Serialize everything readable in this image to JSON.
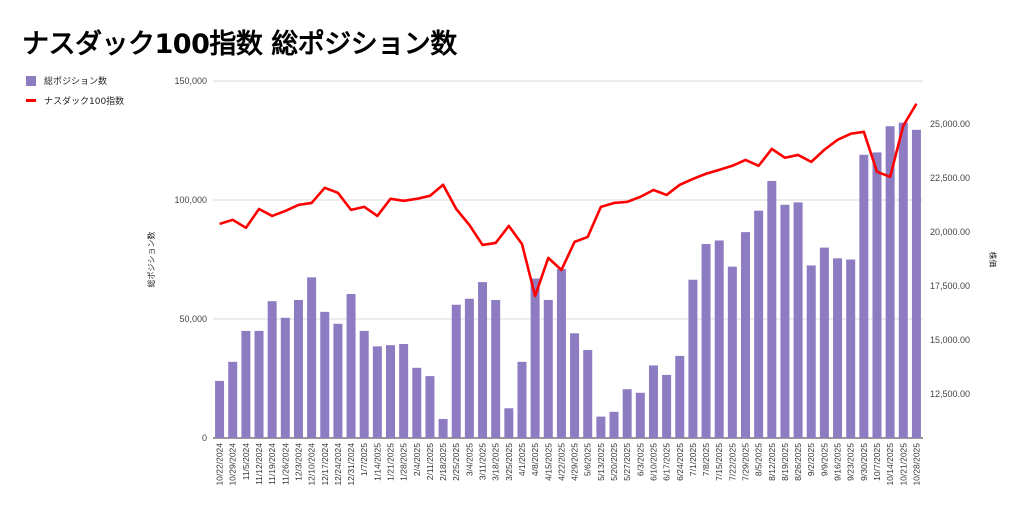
{
  "chart_data": {
    "type": "bar+line",
    "title": "ナスダック100指数 総ポジション数",
    "categories": [
      "10/22/2024",
      "10/29/2024",
      "11/5/2024",
      "11/12/2024",
      "11/19/2024",
      "11/26/2024",
      "12/3/2024",
      "12/10/2024",
      "12/17/2024",
      "12/24/2024",
      "12/31/2024",
      "1/7/2025",
      "1/14/2025",
      "1/21/2025",
      "1/28/2025",
      "2/4/2025",
      "2/11/2025",
      "2/18/2025",
      "2/25/2025",
      "3/4/2025",
      "3/11/2025",
      "3/18/2025",
      "3/25/2025",
      "4/1/2025",
      "4/8/2025",
      "4/15/2025",
      "4/22/2025",
      "4/29/2025",
      "5/6/2025",
      "5/13/2025",
      "5/20/2025",
      "5/27/2025",
      "6/3/2025",
      "6/10/2025",
      "6/17/2025",
      "6/24/2025",
      "7/1/2025",
      "7/8/2025",
      "7/15/2025",
      "7/22/2025",
      "7/29/2025",
      "8/5/2025",
      "8/12/2025",
      "8/19/2025",
      "8/26/2025",
      "9/2/2025",
      "9/9/2025",
      "9/16/2025",
      "9/23/2025",
      "9/30/2025",
      "10/7/2025",
      "10/14/2025",
      "10/21/2025",
      "10/28/2025"
    ],
    "series": [
      {
        "name": "総ポジション数",
        "type": "bar",
        "axis": "left",
        "color": "#8e7cc3",
        "values": [
          24000,
          32000,
          45000,
          45000,
          57500,
          50500,
          58000,
          67500,
          53000,
          48000,
          60500,
          45000,
          38500,
          39000,
          39500,
          29500,
          26000,
          8000,
          56000,
          58500,
          65500,
          58000,
          12500,
          32000,
          67000,
          58000,
          71000,
          44000,
          37000,
          9000,
          11000,
          20500,
          19000,
          30500,
          26500,
          34500,
          66500,
          81500,
          83000,
          72000,
          86500,
          95500,
          108000,
          98000,
          99000,
          72500,
          80000,
          75500,
          75000,
          119000,
          120000,
          131000,
          132500,
          129500
        ]
      },
      {
        "name": "ナスダック100指数",
        "type": "line",
        "axis": "right",
        "color": "#ff0000",
        "values": [
          20370,
          20560,
          20190,
          21060,
          20740,
          20970,
          21250,
          21340,
          22040,
          21810,
          21020,
          21160,
          20740,
          21530,
          21440,
          21530,
          21670,
          22180,
          21060,
          20320,
          19400,
          19490,
          20280,
          19440,
          17040,
          18800,
          18240,
          19540,
          19770,
          21160,
          21340,
          21390,
          21620,
          21940,
          21710,
          22180,
          22450,
          22690,
          22870,
          23060,
          23330,
          23060,
          23840,
          23430,
          23560,
          23240,
          23800,
          24260,
          24540,
          24630,
          22780,
          22550,
          24910,
          25930
        ]
      }
    ],
    "left_axis": {
      "label": "総ポジション数",
      "ylim": [
        0,
        150000
      ],
      "ticks": [
        0,
        50000,
        100000,
        150000
      ],
      "tick_labels": [
        "0",
        "50,000",
        "100,000",
        "150,000"
      ]
    },
    "right_axis": {
      "label": "株価",
      "ylim": [
        10470,
        26980
      ],
      "ticks": [
        12500,
        15000,
        17500,
        20000,
        22500,
        25000
      ],
      "tick_labels": [
        "12,500.00",
        "15,000.00",
        "17,500.00",
        "20,000.00",
        "22,500.00",
        "25,000.00"
      ]
    },
    "legend": [
      "総ポジション数",
      "ナスダック100指数"
    ],
    "legend_position": "top-left",
    "grid": true
  }
}
